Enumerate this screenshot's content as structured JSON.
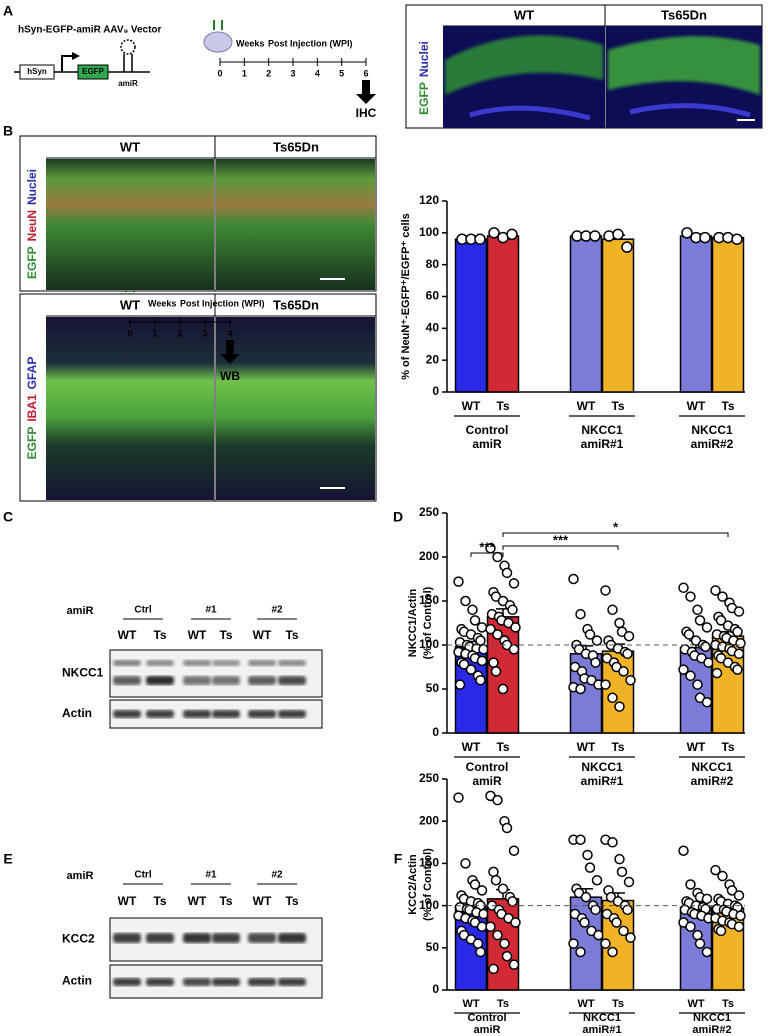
{
  "panel_labels": [
    "A",
    "B",
    "C",
    "D",
    "E",
    "F"
  ],
  "panel_a": {
    "vector_title": "hSyn-EGFP-amiR AAV₉ Vector",
    "promoter": "hSyn",
    "reporter": "EGFP",
    "construct": "amiR",
    "timeline_bold": "Weeks",
    "timeline_rest": "Post Injection (WPI)",
    "timeline_ticks": [
      0,
      1,
      2,
      3,
      4,
      5,
      6
    ],
    "endpoint": "IHC",
    "image_columns": [
      "WT",
      "Ts65Dn"
    ],
    "stain_labels": [
      "EGFP",
      "Nuclei"
    ]
  },
  "panel_b": {
    "image_columns_top": [
      "WT",
      "Ts65Dn"
    ],
    "stain_labels_top": [
      "EGFP",
      "NeuN",
      "Nuclei"
    ],
    "image_columns_bottom": [
      "WT",
      "Ts65Dn"
    ],
    "stain_labels_bottom": [
      "EGFP",
      "IBA1",
      "GFAP"
    ]
  },
  "panel_c": {
    "timeline_bold": "Weeks",
    "timeline_rest": "Post Injection (WPI)",
    "timeline_ticks": [
      0,
      1,
      2,
      3,
      4
    ],
    "endpoint": "WB",
    "row_label": "amiR",
    "groups": [
      "Ctrl",
      "#1",
      "#2"
    ],
    "lanes": [
      "WT",
      "Ts",
      "WT",
      "Ts",
      "WT",
      "Ts"
    ],
    "blots": [
      "NKCC1",
      "Actin"
    ]
  },
  "panel_e": {
    "row_label": "amiR",
    "groups": [
      "Ctrl",
      "#1",
      "#2"
    ],
    "lanes": [
      "WT",
      "Ts",
      "WT",
      "Ts",
      "WT",
      "Ts"
    ],
    "blots": [
      "KCC2",
      "Actin"
    ]
  },
  "chart_data": [
    {
      "type": "bar",
      "y_label": "% of NeuN⁺-EGFP⁺/EGFP⁺ cells",
      "categories": [
        "WT",
        "Ts",
        "WT",
        "Ts",
        "WT",
        "Ts"
      ],
      "groups": [
        [
          "Control",
          "amiR"
        ],
        [
          "NKCC1",
          "amiR#1"
        ],
        [
          "NKCC1",
          "amiR#2"
        ]
      ],
      "colors": [
        "#2a2ae6",
        "#d12a35",
        "#7b7bd8",
        "#f0b325",
        "#7b7bd8",
        "#f0b325"
      ],
      "values": [
        96,
        98,
        98,
        96,
        98,
        97
      ],
      "errors": [
        0.3,
        1.5,
        0.3,
        2.5,
        1.2,
        0.6
      ],
      "points": [
        [
          96,
          96,
          96
        ],
        [
          100,
          97,
          99
        ],
        [
          98,
          98,
          98
        ],
        [
          98,
          99,
          91
        ],
        [
          100,
          97,
          97
        ],
        [
          97,
          97,
          96
        ]
      ],
      "ylim": [
        0,
        120
      ],
      "yticks": [
        0,
        20,
        40,
        60,
        80,
        100,
        120
      ]
    },
    {
      "type": "bar",
      "y_label": [
        "NKCC1/Actin",
        "(% of Control)"
      ],
      "categories": [
        "WT",
        "Ts",
        "WT",
        "Ts",
        "WT",
        "Ts"
      ],
      "groups": [
        [
          "Control",
          "amiR"
        ],
        [
          "NKCC1",
          "amiR#1"
        ],
        [
          "NKCC1",
          "amiR#2"
        ]
      ],
      "colors": [
        "#2a2ae6",
        "#d12a35",
        "#7b7bd8",
        "#f0b325",
        "#7b7bd8",
        "#f0b325"
      ],
      "values": [
        98,
        132,
        90,
        93,
        97,
        110
      ],
      "errors": [
        6,
        9,
        9,
        8,
        8,
        5
      ],
      "points": [
        [
          172,
          150,
          140,
          128,
          120,
          118,
          115,
          112,
          108,
          105,
          103,
          100,
          98,
          96,
          95,
          92,
          90,
          88,
          85,
          82,
          80,
          78,
          72,
          65,
          60,
          55
        ],
        [
          210,
          200,
          190,
          182,
          170,
          160,
          155,
          150,
          145,
          140,
          135,
          132,
          128,
          125,
          120,
          118,
          112,
          105,
          100,
          95,
          80,
          70,
          50
        ],
        [
          175,
          135,
          118,
          112,
          105,
          100,
          95,
          90,
          88,
          80,
          75,
          70,
          62,
          60,
          55,
          52,
          50
        ],
        [
          162,
          140,
          125,
          115,
          110,
          105,
          100,
          96,
          92,
          90,
          85,
          80,
          75,
          70,
          60,
          55,
          40,
          30
        ],
        [
          165,
          155,
          140,
          128,
          120,
          115,
          112,
          105,
          100,
          98,
          95,
          92,
          88,
          85,
          80,
          72,
          65,
          55,
          40,
          35
        ],
        [
          162,
          155,
          148,
          142,
          138,
          132,
          128,
          122,
          118,
          115,
          112,
          110,
          108,
          105,
          102,
          100,
          98,
          96,
          93,
          90,
          88,
          85,
          80,
          75,
          72,
          68
        ]
      ],
      "ylim": [
        0,
        250
      ],
      "yticks": [
        0,
        50,
        100,
        150,
        200,
        250
      ],
      "reference_line": 100,
      "annotations": [
        "***",
        "***",
        "*"
      ]
    },
    {
      "type": "bar",
      "y_label": [
        "KCC2/Actin",
        "(% of Control)"
      ],
      "categories": [
        "WT",
        "Ts",
        "WT",
        "Ts",
        "WT",
        "Ts"
      ],
      "groups": [
        [
          "Control",
          "amiR"
        ],
        [
          "NKCC1",
          "amiR#1"
        ],
        [
          "NKCC1",
          "amiR#2"
        ]
      ],
      "colors": [
        "#2a2ae6",
        "#d12a35",
        "#7b7bd8",
        "#f0b325",
        "#7b7bd8",
        "#f0b325"
      ],
      "values": [
        100,
        108,
        110,
        106,
        98,
        97
      ],
      "errors": [
        6,
        11,
        10,
        9,
        6,
        4
      ],
      "points": [
        [
          228,
          150,
          130,
          125,
          118,
          112,
          108,
          105,
          103,
          100,
          98,
          96,
          95,
          92,
          90,
          88,
          85,
          82,
          80,
          75,
          70,
          65,
          60,
          55,
          45
        ],
        [
          230,
          225,
          200,
          192,
          165,
          140,
          130,
          120,
          110,
          105,
          100,
          95,
          90,
          85,
          80,
          75,
          65,
          55,
          40,
          30,
          25
        ],
        [
          178,
          178,
          160,
          145,
          130,
          120,
          115,
          110,
          100,
          95,
          90,
          85,
          80,
          70,
          65,
          55,
          45
        ],
        [
          178,
          175,
          155,
          140,
          128,
          118,
          110,
          105,
          100,
          95,
          90,
          85,
          80,
          70,
          62,
          55,
          45
        ],
        [
          165,
          125,
          115,
          110,
          108,
          105,
          103,
          100,
          98,
          96,
          95,
          92,
          90,
          88,
          85,
          80,
          75,
          65,
          55,
          45
        ],
        [
          142,
          135,
          125,
          118,
          112,
          108,
          105,
          102,
          100,
          98,
          96,
          95,
          93,
          90,
          88,
          85,
          82,
          80,
          78,
          75,
          72,
          70
        ]
      ],
      "ylim": [
        0,
        250
      ],
      "yticks": [
        0,
        50,
        100,
        150,
        200,
        250
      ],
      "reference_line": 100
    }
  ]
}
